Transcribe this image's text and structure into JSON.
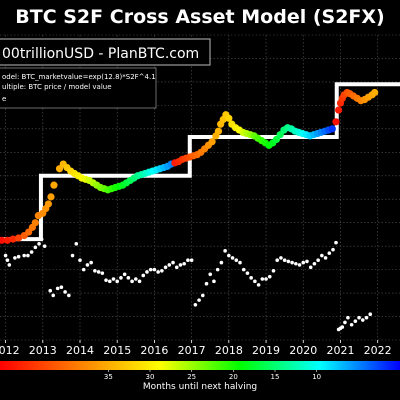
{
  "chart_data": {
    "type": "scatter",
    "title": "BTC S2F Cross Asset Model (S2FX)",
    "header_text": "00trillionUSD  -  PlanBTC.com",
    "legend_lines": [
      "odel:  BTC_marketvalue=exp(12.8)*S2F^4.1",
      "ultiple:  BTC price / model value"
    ],
    "xlabel": "",
    "ylabel": "",
    "x_ticks": [
      "2012",
      "2013",
      "2014",
      "2015",
      "2016",
      "2017",
      "2018",
      "2019",
      "2020",
      "2021",
      "2022"
    ],
    "xlim": [
      2011.85,
      2022.6
    ],
    "ylim": [
      0,
      13
    ],
    "grid": true,
    "model_step_line": {
      "color": "#ffffff",
      "points": [
        [
          2011.85,
          4.3
        ],
        [
          2012.95,
          4.3
        ],
        [
          2012.95,
          7.0
        ],
        [
          2016.95,
          7.0
        ],
        [
          2016.95,
          8.65
        ],
        [
          2020.9,
          8.65
        ],
        [
          2020.9,
          10.9
        ],
        [
          2022.6,
          10.9
        ]
      ]
    },
    "price_series": {
      "points": [
        [
          2011.9,
          4.25,
          47
        ],
        [
          2012.05,
          4.25,
          46
        ],
        [
          2012.2,
          4.3,
          45
        ],
        [
          2012.35,
          4.35,
          43
        ],
        [
          2012.5,
          4.45,
          41
        ],
        [
          2012.62,
          4.6,
          40
        ],
        [
          2012.72,
          4.8,
          39
        ],
        [
          2012.8,
          5.0,
          38.5
        ],
        [
          2012.88,
          5.3,
          38
        ],
        [
          2013.0,
          5.4,
          37.5
        ],
        [
          2013.08,
          5.6,
          37
        ],
        [
          2013.15,
          5.8,
          36.5
        ],
        [
          2013.22,
          6.1,
          36
        ],
        [
          2013.3,
          6.6,
          35.5
        ],
        [
          2013.45,
          7.3,
          35
        ],
        [
          2013.55,
          7.5,
          34
        ],
        [
          2013.65,
          7.35,
          33
        ],
        [
          2013.75,
          7.2,
          32
        ],
        [
          2013.85,
          7.1,
          31
        ],
        [
          2013.95,
          7.0,
          30
        ],
        [
          2014.05,
          6.9,
          29
        ],
        [
          2014.15,
          6.85,
          28
        ],
        [
          2014.25,
          6.8,
          27
        ],
        [
          2014.35,
          6.7,
          26
        ],
        [
          2014.45,
          6.6,
          25
        ],
        [
          2014.55,
          6.5,
          24
        ],
        [
          2014.65,
          6.45,
          23
        ],
        [
          2014.75,
          6.4,
          22
        ],
        [
          2014.85,
          6.45,
          21
        ],
        [
          2014.95,
          6.5,
          20
        ],
        [
          2015.05,
          6.55,
          19
        ],
        [
          2015.15,
          6.6,
          18
        ],
        [
          2015.25,
          6.7,
          17
        ],
        [
          2015.35,
          6.8,
          16
        ],
        [
          2015.45,
          6.9,
          15
        ],
        [
          2015.55,
          7.0,
          14
        ],
        [
          2015.65,
          7.05,
          13
        ],
        [
          2015.75,
          7.1,
          12
        ],
        [
          2015.85,
          7.15,
          11
        ],
        [
          2015.95,
          7.2,
          10
        ],
        [
          2016.05,
          7.25,
          9
        ],
        [
          2016.15,
          7.3,
          8
        ],
        [
          2016.25,
          7.35,
          7
        ],
        [
          2016.35,
          7.4,
          6
        ],
        [
          2016.45,
          7.5,
          5
        ],
        [
          2016.55,
          7.55,
          46
        ],
        [
          2016.65,
          7.6,
          45
        ],
        [
          2016.75,
          7.7,
          44
        ],
        [
          2016.85,
          7.75,
          43
        ],
        [
          2016.95,
          7.8,
          42
        ],
        [
          2017.05,
          7.85,
          41
        ],
        [
          2017.15,
          7.9,
          40
        ],
        [
          2017.25,
          8.0,
          39
        ],
        [
          2017.35,
          8.15,
          38
        ],
        [
          2017.45,
          8.3,
          37
        ],
        [
          2017.55,
          8.45,
          36
        ],
        [
          2017.65,
          8.7,
          35
        ],
        [
          2017.72,
          8.9,
          34.5
        ],
        [
          2017.78,
          9.2,
          34
        ],
        [
          2017.85,
          9.4,
          33.5
        ],
        [
          2017.92,
          9.6,
          33
        ],
        [
          2018.0,
          9.45,
          32
        ],
        [
          2018.08,
          9.2,
          31
        ],
        [
          2018.18,
          9.05,
          30
        ],
        [
          2018.28,
          8.95,
          29
        ],
        [
          2018.38,
          8.85,
          27
        ],
        [
          2018.48,
          8.8,
          26
        ],
        [
          2018.58,
          8.75,
          25
        ],
        [
          2018.68,
          8.7,
          23
        ],
        [
          2018.78,
          8.6,
          22
        ],
        [
          2018.88,
          8.5,
          21
        ],
        [
          2018.98,
          8.4,
          20
        ],
        [
          2019.08,
          8.3,
          19
        ],
        [
          2019.18,
          8.4,
          18
        ],
        [
          2019.28,
          8.55,
          17
        ],
        [
          2019.38,
          8.75,
          16
        ],
        [
          2019.48,
          8.95,
          15
        ],
        [
          2019.58,
          9.05,
          14
        ],
        [
          2019.68,
          9.0,
          13
        ],
        [
          2019.78,
          8.9,
          12
        ],
        [
          2019.88,
          8.85,
          11
        ],
        [
          2019.98,
          8.8,
          10
        ],
        [
          2020.08,
          8.75,
          9
        ],
        [
          2020.18,
          8.7,
          8
        ],
        [
          2020.28,
          8.75,
          7
        ],
        [
          2020.38,
          8.8,
          6
        ],
        [
          2020.48,
          8.85,
          5
        ],
        [
          2020.58,
          8.9,
          4
        ],
        [
          2020.68,
          8.95,
          3
        ],
        [
          2020.78,
          9.0,
          2
        ],
        [
          2020.88,
          9.3,
          47
        ],
        [
          2020.95,
          9.8,
          46
        ],
        [
          2021.0,
          10.1,
          45
        ],
        [
          2021.05,
          10.3,
          44
        ],
        [
          2021.1,
          10.45,
          43
        ],
        [
          2021.18,
          10.55,
          42
        ],
        [
          2021.25,
          10.5,
          41
        ],
        [
          2021.35,
          10.4,
          40
        ],
        [
          2021.45,
          10.3,
          39
        ],
        [
          2021.55,
          10.2,
          38
        ],
        [
          2021.65,
          10.25,
          37
        ],
        [
          2021.75,
          10.35,
          36
        ],
        [
          2021.85,
          10.45,
          35.5
        ],
        [
          2021.92,
          10.55,
          35
        ]
      ]
    },
    "multiple_series": {
      "color": "#ffffff",
      "points": [
        [
          2012.0,
          3.6
        ],
        [
          2012.05,
          3.4
        ],
        [
          2012.1,
          3.2
        ],
        [
          2012.25,
          3.5
        ],
        [
          2012.35,
          3.55
        ],
        [
          2012.5,
          3.6
        ],
        [
          2012.6,
          3.6
        ],
        [
          2012.7,
          3.75
        ],
        [
          2012.8,
          3.95
        ],
        [
          2012.9,
          4.1
        ],
        [
          2012.97,
          4.3
        ],
        [
          2013.05,
          4.0
        ],
        [
          2013.2,
          2.1
        ],
        [
          2013.28,
          1.9
        ],
        [
          2013.4,
          2.2
        ],
        [
          2013.5,
          2.25
        ],
        [
          2013.6,
          2.05
        ],
        [
          2013.7,
          1.9
        ],
        [
          2013.8,
          3.6
        ],
        [
          2013.9,
          4.1
        ],
        [
          2014.0,
          3.4
        ],
        [
          2014.1,
          3.0
        ],
        [
          2014.2,
          3.2
        ],
        [
          2014.3,
          3.3
        ],
        [
          2014.4,
          2.95
        ],
        [
          2014.5,
          2.9
        ],
        [
          2014.6,
          2.85
        ],
        [
          2014.7,
          2.55
        ],
        [
          2014.8,
          2.5
        ],
        [
          2014.9,
          2.6
        ],
        [
          2015.0,
          2.5
        ],
        [
          2015.1,
          2.65
        ],
        [
          2015.2,
          2.8
        ],
        [
          2015.3,
          2.65
        ],
        [
          2015.4,
          2.5
        ],
        [
          2015.5,
          2.6
        ],
        [
          2015.6,
          2.5
        ],
        [
          2015.7,
          2.75
        ],
        [
          2015.8,
          2.9
        ],
        [
          2015.9,
          3.0
        ],
        [
          2016.0,
          3.0
        ],
        [
          2016.1,
          2.9
        ],
        [
          2016.2,
          2.95
        ],
        [
          2016.3,
          3.1
        ],
        [
          2016.4,
          3.2
        ],
        [
          2016.5,
          3.3
        ],
        [
          2016.6,
          3.1
        ],
        [
          2016.7,
          3.2
        ],
        [
          2016.8,
          3.25
        ],
        [
          2016.9,
          3.4
        ],
        [
          2017.0,
          3.4
        ],
        [
          2017.1,
          1.5
        ],
        [
          2017.2,
          1.7
        ],
        [
          2017.3,
          1.9
        ],
        [
          2017.4,
          2.4
        ],
        [
          2017.5,
          2.8
        ],
        [
          2017.6,
          2.5
        ],
        [
          2017.7,
          3.0
        ],
        [
          2017.8,
          3.3
        ],
        [
          2017.9,
          3.8
        ],
        [
          2018.0,
          3.6
        ],
        [
          2018.1,
          3.5
        ],
        [
          2018.2,
          3.4
        ],
        [
          2018.3,
          3.3
        ],
        [
          2018.4,
          3.0
        ],
        [
          2018.5,
          2.85
        ],
        [
          2018.6,
          2.65
        ],
        [
          2018.7,
          2.5
        ],
        [
          2018.8,
          2.35
        ],
        [
          2018.9,
          2.6
        ],
        [
          2019.0,
          2.6
        ],
        [
          2019.1,
          2.7
        ],
        [
          2019.2,
          2.95
        ],
        [
          2019.3,
          3.4
        ],
        [
          2019.4,
          3.5
        ],
        [
          2019.5,
          3.4
        ],
        [
          2019.6,
          3.35
        ],
        [
          2019.7,
          3.3
        ],
        [
          2019.8,
          3.25
        ],
        [
          2019.9,
          3.2
        ],
        [
          2020.0,
          3.3
        ],
        [
          2020.1,
          3.35
        ],
        [
          2020.2,
          3.1
        ],
        [
          2020.3,
          3.25
        ],
        [
          2020.4,
          3.4
        ],
        [
          2020.5,
          3.6
        ],
        [
          2020.6,
          3.5
        ],
        [
          2020.7,
          3.7
        ],
        [
          2020.8,
          3.85
        ],
        [
          2020.88,
          4.15
        ],
        [
          2020.95,
          0.45
        ],
        [
          2021.0,
          0.5
        ],
        [
          2021.05,
          0.55
        ],
        [
          2021.12,
          0.75
        ],
        [
          2021.2,
          0.95
        ],
        [
          2021.3,
          0.65
        ],
        [
          2021.4,
          0.8
        ],
        [
          2021.5,
          0.95
        ],
        [
          2021.6,
          0.85
        ],
        [
          2021.7,
          0.95
        ],
        [
          2021.8,
          1.1
        ]
      ]
    },
    "colorbar": {
      "label": "Months until next halving",
      "tick_values": [
        35,
        30,
        25,
        20,
        15,
        10
      ],
      "range": [
        48,
        0
      ],
      "colors": [
        "#ff0000",
        "#ff8000",
        "#ffff00",
        "#00ff00",
        "#00ffff",
        "#0000ff"
      ]
    }
  }
}
